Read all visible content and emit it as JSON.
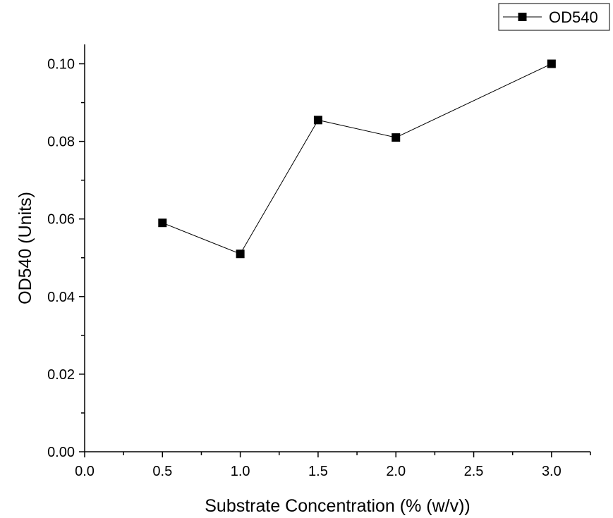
{
  "chart_data": {
    "type": "line",
    "title": "",
    "xlabel": "Substrate Concentration (% (w/v))",
    "ylabel": "OD540 (Units)",
    "xlim": [
      0.0,
      3.25
    ],
    "ylim": [
      0.0,
      0.105
    ],
    "x_ticks": [
      0.0,
      0.5,
      1.0,
      1.5,
      2.0,
      2.5,
      3.0
    ],
    "x_tick_labels": [
      "0.0",
      "0.5",
      "1.0",
      "1.5",
      "2.0",
      "2.5",
      "3.0"
    ],
    "y_ticks": [
      0.0,
      0.02,
      0.04,
      0.06,
      0.08,
      0.1
    ],
    "y_tick_labels": [
      "0.00",
      "0.02",
      "0.04",
      "0.06",
      "0.08",
      "0.10"
    ],
    "grid": false,
    "legend_position": "top-right",
    "series": [
      {
        "name": "OD540",
        "marker": "square",
        "color": "#000000",
        "x": [
          0.5,
          1.0,
          1.5,
          2.0,
          3.0
        ],
        "y": [
          0.059,
          0.051,
          0.0855,
          0.081,
          0.1
        ]
      }
    ]
  }
}
